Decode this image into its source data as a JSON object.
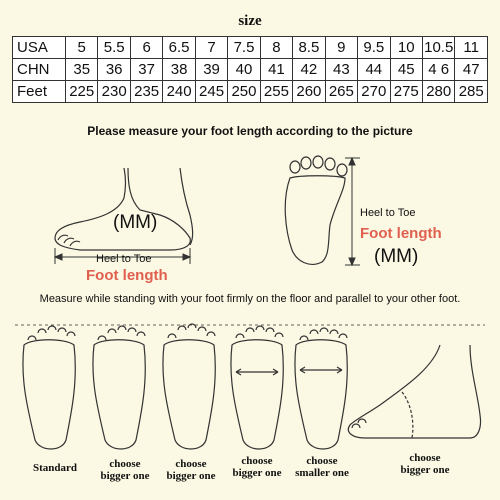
{
  "title": "size",
  "table": {
    "rows": [
      {
        "label": "USA",
        "cells": [
          "5",
          "5.5",
          "6",
          "6.5",
          "7",
          "7.5",
          "8",
          "8.5",
          "9",
          "9.5",
          "10",
          "10.5",
          "11"
        ]
      },
      {
        "label": "CHN",
        "cells": [
          "35",
          "36",
          "37",
          "38",
          "39",
          "40",
          "41",
          "42",
          "43",
          "44",
          "45",
          "4 6",
          "47"
        ]
      },
      {
        "label": "Feet",
        "cells": [
          "225",
          "230",
          "235",
          "240",
          "245",
          "250",
          "255",
          "260",
          "265",
          "270",
          "275",
          "280",
          "285"
        ]
      }
    ]
  },
  "instruction": "Please measure your foot length according to the picture",
  "side_diagram": {
    "unit": "(MM)",
    "measure": "Heel to Toe",
    "foot_length": "Foot length"
  },
  "sole_diagram": {
    "unit": "(MM)",
    "measure": "Heel to Toe",
    "foot_length": "Foot length"
  },
  "note": "Measure while standing with your foot firmly on the floor and parallel to your other foot.",
  "foot_types": [
    {
      "line1": "Standard",
      "line2": ""
    },
    {
      "line1": "choose",
      "line2": "bigger one"
    },
    {
      "line1": "choose",
      "line2": "bigger one"
    },
    {
      "line1": "choose",
      "line2": "bigger one"
    },
    {
      "line1": "choose",
      "line2": "smaller one"
    },
    {
      "line1": "choose",
      "line2": "bigger one"
    }
  ],
  "colors": {
    "background": "#fbf8e3",
    "accent": "#e06050",
    "ink": "#333333"
  }
}
